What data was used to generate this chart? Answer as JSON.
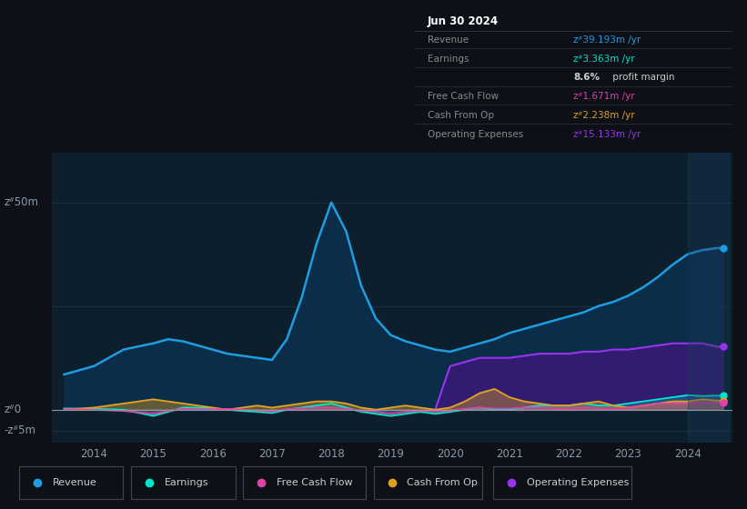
{
  "bg_color": "#0d1117",
  "plot_bg_color": "#0d1f2d",
  "grid_color": "#1e3a4a",
  "title_text": "Jun 30 2024",
  "y_label_top": "zᐥ50m",
  "y_label_mid": "zᐥ0",
  "y_label_bot": "-zᐥ5m",
  "x_ticks": [
    2014,
    2015,
    2016,
    2017,
    2018,
    2019,
    2020,
    2021,
    2022,
    2023,
    2024
  ],
  "ylim": [
    -8,
    62
  ],
  "xlim": [
    2013.3,
    2024.75
  ],
  "revenue_color": "#1e9de0",
  "earnings_color": "#00e5cc",
  "fcf_color": "#e040aa",
  "cashfromop_color": "#e0a020",
  "opex_color": "#9933ee",
  "legend": [
    {
      "label": "Revenue",
      "color": "#1e9de0"
    },
    {
      "label": "Earnings",
      "color": "#00e5cc"
    },
    {
      "label": "Free Cash Flow",
      "color": "#e040aa"
    },
    {
      "label": "Cash From Op",
      "color": "#e0a020"
    },
    {
      "label": "Operating Expenses",
      "color": "#9933ee"
    }
  ],
  "info_rows": [
    {
      "label": "Revenue",
      "value": "zᐥ39.193m /yr",
      "value_color": "#1e9de0"
    },
    {
      "label": "Earnings",
      "value": "zᐥ3.363m /yr",
      "value_color": "#00e5cc"
    },
    {
      "label": "",
      "value": "8.6% profit margin",
      "value_color": "#cccccc",
      "bold_prefix": "8.6%"
    },
    {
      "label": "Free Cash Flow",
      "value": "zᐥ1.671m /yr",
      "value_color": "#e040aa"
    },
    {
      "label": "Cash From Op",
      "value": "zᐥ2.238m /yr",
      "value_color": "#e0a020"
    },
    {
      "label": "Operating Expenses",
      "value": "zᐥ15.133m /yr",
      "value_color": "#9933ee"
    }
  ],
  "revenue_x": [
    2013.5,
    2014.0,
    2014.5,
    2015.0,
    2015.25,
    2015.5,
    2015.75,
    2016.0,
    2016.25,
    2016.5,
    2016.75,
    2017.0,
    2017.25,
    2017.5,
    2017.75,
    2018.0,
    2018.25,
    2018.5,
    2018.75,
    2019.0,
    2019.25,
    2019.5,
    2019.75,
    2020.0,
    2020.25,
    2020.5,
    2020.75,
    2021.0,
    2021.25,
    2021.5,
    2021.75,
    2022.0,
    2022.25,
    2022.5,
    2022.75,
    2023.0,
    2023.25,
    2023.5,
    2023.75,
    2024.0,
    2024.25,
    2024.5,
    2024.6
  ],
  "revenue_y": [
    8.5,
    10.5,
    14.5,
    16.0,
    17.0,
    16.5,
    15.5,
    14.5,
    13.5,
    13.0,
    12.5,
    12.0,
    17.0,
    27.0,
    40.0,
    50.0,
    43.0,
    30.0,
    22.0,
    18.0,
    16.5,
    15.5,
    14.5,
    14.0,
    15.0,
    16.0,
    17.0,
    18.5,
    19.5,
    20.5,
    21.5,
    22.5,
    23.5,
    25.0,
    26.0,
    27.5,
    29.5,
    32.0,
    35.0,
    37.5,
    38.5,
    39.0,
    39.0
  ],
  "earnings_x": [
    2013.5,
    2014.0,
    2014.5,
    2015.0,
    2015.25,
    2015.5,
    2015.75,
    2016.0,
    2016.25,
    2016.5,
    2016.75,
    2017.0,
    2017.25,
    2017.5,
    2017.75,
    2018.0,
    2018.25,
    2018.5,
    2018.75,
    2019.0,
    2019.25,
    2019.5,
    2019.75,
    2020.0,
    2020.25,
    2020.5,
    2020.75,
    2021.0,
    2021.25,
    2021.5,
    2021.75,
    2022.0,
    2022.25,
    2022.5,
    2022.75,
    2023.0,
    2023.25,
    2023.5,
    2023.75,
    2024.0,
    2024.25,
    2024.5,
    2024.6
  ],
  "earnings_y": [
    0.3,
    0.2,
    0.0,
    -1.5,
    -0.5,
    0.5,
    0.5,
    0.3,
    0.0,
    -0.3,
    -0.5,
    -0.8,
    0.0,
    0.5,
    1.0,
    1.5,
    0.5,
    -0.5,
    -1.0,
    -1.5,
    -1.0,
    -0.5,
    -1.0,
    -0.5,
    0.0,
    0.5,
    0.0,
    0.0,
    0.5,
    1.0,
    1.0,
    1.0,
    1.5,
    1.0,
    1.0,
    1.5,
    2.0,
    2.5,
    3.0,
    3.5,
    3.3,
    3.4,
    3.4
  ],
  "fcf_x": [
    2013.5,
    2014.0,
    2014.5,
    2015.0,
    2015.25,
    2015.5,
    2015.75,
    2016.0,
    2016.25,
    2016.5,
    2016.75,
    2017.0,
    2017.25,
    2017.5,
    2017.75,
    2018.0,
    2018.25,
    2018.5,
    2018.75,
    2019.0,
    2019.25,
    2019.5,
    2019.75,
    2020.0,
    2020.25,
    2020.5,
    2020.75,
    2021.0,
    2021.25,
    2021.5,
    2021.75,
    2022.0,
    2022.25,
    2022.5,
    2022.75,
    2023.0,
    2023.25,
    2023.5,
    2023.75,
    2024.0,
    2024.25,
    2024.5,
    2024.6
  ],
  "fcf_y": [
    0.1,
    0.0,
    -0.3,
    -1.0,
    -0.3,
    0.2,
    0.0,
    0.1,
    0.2,
    0.0,
    -0.2,
    -0.5,
    0.2,
    0.3,
    0.5,
    0.5,
    0.2,
    -0.3,
    -0.5,
    -1.0,
    -0.5,
    -0.3,
    -0.5,
    -0.3,
    0.2,
    0.5,
    0.3,
    0.3,
    0.5,
    0.5,
    0.3,
    0.3,
    0.5,
    0.3,
    0.2,
    0.5,
    1.0,
    1.5,
    1.5,
    1.5,
    1.7,
    1.7,
    1.7
  ],
  "cashop_x": [
    2013.5,
    2014.0,
    2014.5,
    2015.0,
    2015.25,
    2015.5,
    2015.75,
    2016.0,
    2016.25,
    2016.5,
    2016.75,
    2017.0,
    2017.25,
    2017.5,
    2017.75,
    2018.0,
    2018.25,
    2018.5,
    2018.75,
    2019.0,
    2019.25,
    2019.5,
    2019.75,
    2020.0,
    2020.25,
    2020.5,
    2020.75,
    2021.0,
    2021.25,
    2021.5,
    2021.75,
    2022.0,
    2022.25,
    2022.5,
    2022.75,
    2023.0,
    2023.25,
    2023.5,
    2023.75,
    2024.0,
    2024.25,
    2024.5,
    2024.6
  ],
  "cashop_y": [
    0.0,
    0.5,
    1.5,
    2.5,
    2.0,
    1.5,
    1.0,
    0.5,
    0.0,
    0.5,
    1.0,
    0.5,
    1.0,
    1.5,
    2.0,
    2.0,
    1.5,
    0.5,
    0.0,
    0.5,
    1.0,
    0.5,
    0.0,
    0.5,
    2.0,
    4.0,
    5.0,
    3.0,
    2.0,
    1.5,
    1.0,
    1.0,
    1.5,
    2.0,
    1.0,
    0.5,
    1.0,
    1.5,
    2.0,
    2.0,
    2.5,
    2.2,
    2.2
  ],
  "opex_x": [
    2019.75,
    2020.0,
    2020.25,
    2020.5,
    2020.75,
    2021.0,
    2021.25,
    2021.5,
    2021.75,
    2022.0,
    2022.25,
    2022.5,
    2022.75,
    2023.0,
    2023.25,
    2023.5,
    2023.75,
    2024.0,
    2024.25,
    2024.5,
    2024.6
  ],
  "opex_y": [
    0.0,
    10.5,
    11.5,
    12.5,
    12.5,
    12.5,
    13.0,
    13.5,
    13.5,
    13.5,
    14.0,
    14.0,
    14.5,
    14.5,
    15.0,
    15.5,
    16.0,
    16.0,
    16.0,
    15.2,
    15.2
  ],
  "highlight_start": 2024.0,
  "highlight_end": 2024.7
}
